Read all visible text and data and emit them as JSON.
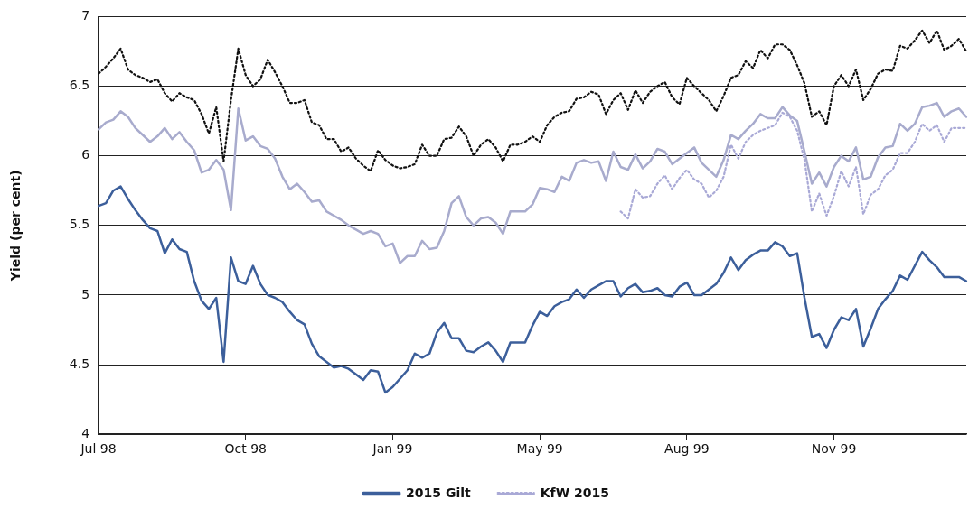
{
  "chart_data": {
    "type": "line",
    "ylabel": "Yield (per cent)",
    "categories": [
      "Jul 98",
      null,
      null,
      null,
      null,
      null,
      null,
      null,
      null,
      null,
      null,
      null,
      null,
      null,
      null,
      null,
      null,
      null,
      null,
      null,
      "Oct 98",
      null,
      null,
      null,
      null,
      null,
      null,
      null,
      null,
      null,
      null,
      null,
      null,
      null,
      null,
      null,
      null,
      null,
      null,
      null,
      "Jan 99",
      null,
      null,
      null,
      null,
      null,
      null,
      null,
      null,
      null,
      null,
      null,
      null,
      null,
      null,
      null,
      null,
      null,
      null,
      null,
      "May 99",
      null,
      null,
      null,
      null,
      null,
      null,
      null,
      null,
      null,
      null,
      null,
      null,
      null,
      null,
      null,
      null,
      null,
      null,
      null,
      "Aug 99",
      null,
      null,
      null,
      null,
      null,
      null,
      null,
      null,
      null,
      null,
      null,
      null,
      null,
      null,
      null,
      null,
      null,
      null,
      null,
      "Nov 99",
      null,
      null,
      null,
      null,
      null,
      null,
      null,
      null,
      null,
      null,
      null,
      null,
      null,
      null,
      null,
      null,
      null,
      null
    ],
    "ylim": [
      4,
      7
    ],
    "yticks": [
      4,
      4.5,
      5,
      5.5,
      6,
      6.5,
      7
    ],
    "grid": "y",
    "legend": "bottom",
    "series": [
      {
        "name": "2015 Gilt",
        "color": "#3c5f9b",
        "line_style": "solid",
        "values": [
          5.64,
          5.66,
          5.75,
          5.78,
          5.69,
          5.61,
          5.54,
          5.48,
          5.46,
          5.3,
          5.4,
          5.33,
          5.31,
          5.1,
          4.96,
          4.9,
          4.98,
          4.52,
          5.27,
          5.1,
          5.08,
          5.21,
          5.08,
          5.0,
          4.98,
          4.95,
          4.88,
          4.82,
          4.79,
          4.65,
          4.56,
          4.52,
          4.48,
          4.49,
          4.47,
          4.43,
          4.39,
          4.46,
          4.45,
          4.3,
          4.34,
          4.4,
          4.46,
          4.58,
          4.55,
          4.58,
          4.73,
          4.8,
          4.69,
          4.69,
          4.6,
          4.59,
          4.63,
          4.66,
          4.6,
          4.52,
          4.66,
          4.66,
          4.66,
          4.78,
          4.88,
          4.85,
          4.92,
          4.95,
          4.97,
          5.04,
          4.98,
          5.04,
          5.07,
          5.1,
          5.1,
          4.99,
          5.05,
          5.08,
          5.02,
          5.03,
          5.05,
          5.0,
          4.99,
          5.06,
          5.09,
          5.0,
          5.0,
          5.04,
          5.08,
          5.16,
          5.27,
          5.18,
          5.25,
          5.29,
          5.32,
          5.32,
          5.38,
          5.35,
          5.28,
          5.3,
          4.98,
          4.7,
          4.72,
          4.62,
          4.75,
          4.84,
          4.82,
          4.9,
          4.63,
          4.76,
          4.9,
          4.97,
          5.03,
          5.14,
          5.11,
          5.21,
          5.31,
          5.25,
          5.2,
          5.13,
          5.13,
          5.13,
          5.1
        ]
      },
      {
        "name": "KfW 2015",
        "color": "#a9a9d6",
        "line_style": "dotted",
        "values": [
          null,
          null,
          null,
          null,
          null,
          null,
          null,
          null,
          null,
          null,
          null,
          null,
          null,
          null,
          null,
          null,
          null,
          null,
          null,
          null,
          null,
          null,
          null,
          null,
          null,
          null,
          null,
          null,
          null,
          null,
          null,
          null,
          null,
          null,
          null,
          null,
          null,
          null,
          null,
          null,
          null,
          null,
          null,
          null,
          null,
          null,
          null,
          null,
          null,
          null,
          null,
          null,
          null,
          null,
          null,
          null,
          null,
          null,
          null,
          null,
          null,
          null,
          null,
          null,
          null,
          null,
          null,
          null,
          null,
          null,
          null,
          5.6,
          5.55,
          5.76,
          5.7,
          5.71,
          5.8,
          5.86,
          5.76,
          5.84,
          5.9,
          5.83,
          5.8,
          5.7,
          5.75,
          5.85,
          6.08,
          5.98,
          6.1,
          6.15,
          6.18,
          6.2,
          6.22,
          6.31,
          6.28,
          6.18,
          5.97,
          5.6,
          5.73,
          5.57,
          5.71,
          5.89,
          5.78,
          5.92,
          5.58,
          5.72,
          5.76,
          5.86,
          5.9,
          6.02,
          6.02,
          6.1,
          6.23,
          6.18,
          6.22,
          6.1,
          6.2,
          6.2,
          6.2
        ]
      },
      {
        "color": "#111111",
        "line_style": "dotted",
        "values": [
          6.59,
          6.64,
          6.7,
          6.77,
          6.62,
          6.58,
          6.56,
          6.53,
          6.55,
          6.45,
          6.39,
          6.45,
          6.42,
          6.4,
          6.3,
          6.16,
          6.35,
          5.96,
          6.4,
          6.77,
          6.58,
          6.5,
          6.55,
          6.69,
          6.6,
          6.5,
          6.38,
          6.38,
          6.4,
          6.24,
          6.22,
          6.12,
          6.12,
          6.03,
          6.06,
          5.98,
          5.93,
          5.89,
          6.04,
          5.97,
          5.93,
          5.91,
          5.92,
          5.94,
          6.08,
          6.0,
          6.0,
          6.12,
          6.13,
          6.21,
          6.14,
          6.0,
          6.08,
          6.12,
          6.06,
          5.96,
          6.08,
          6.08,
          6.1,
          6.14,
          6.1,
          6.22,
          6.28,
          6.31,
          6.32,
          6.41,
          6.42,
          6.46,
          6.44,
          6.3,
          6.4,
          6.45,
          6.33,
          6.47,
          6.38,
          6.46,
          6.5,
          6.53,
          6.42,
          6.37,
          6.56,
          6.5,
          6.45,
          6.4,
          6.32,
          6.43,
          6.56,
          6.58,
          6.68,
          6.63,
          6.76,
          6.7,
          6.8,
          6.8,
          6.76,
          6.65,
          6.52,
          6.28,
          6.32,
          6.22,
          6.5,
          6.58,
          6.5,
          6.62,
          6.4,
          6.48,
          6.59,
          6.62,
          6.61,
          6.79,
          6.77,
          6.83,
          6.9,
          6.81,
          6.9,
          6.76,
          6.79,
          6.84,
          6.75
        ]
      },
      {
        "color": "#a8abcd",
        "line_style": "solid",
        "values": [
          6.19,
          6.24,
          6.26,
          6.32,
          6.28,
          6.2,
          6.15,
          6.1,
          6.14,
          6.2,
          6.12,
          6.17,
          6.1,
          6.04,
          5.88,
          5.9,
          5.97,
          5.9,
          5.61,
          6.34,
          6.11,
          6.14,
          6.07,
          6.05,
          5.98,
          5.85,
          5.76,
          5.8,
          5.74,
          5.67,
          5.68,
          5.6,
          5.57,
          5.54,
          5.5,
          5.47,
          5.44,
          5.46,
          5.44,
          5.35,
          5.37,
          5.23,
          5.28,
          5.28,
          5.39,
          5.33,
          5.34,
          5.46,
          5.66,
          5.71,
          5.56,
          5.5,
          5.55,
          5.56,
          5.52,
          5.44,
          5.6,
          5.6,
          5.6,
          5.65,
          5.77,
          5.76,
          5.74,
          5.85,
          5.82,
          5.95,
          5.97,
          5.95,
          5.96,
          5.82,
          6.03,
          5.92,
          5.9,
          6.01,
          5.91,
          5.96,
          6.05,
          6.03,
          5.94,
          5.98,
          6.02,
          6.06,
          5.95,
          5.9,
          5.85,
          5.97,
          6.15,
          6.12,
          6.18,
          6.23,
          6.3,
          6.27,
          6.27,
          6.35,
          6.29,
          6.25,
          6.03,
          5.8,
          5.88,
          5.78,
          5.92,
          6.0,
          5.96,
          6.06,
          5.83,
          5.85,
          5.99,
          6.06,
          6.07,
          6.23,
          6.18,
          6.23,
          6.35,
          6.36,
          6.38,
          6.28,
          6.32,
          6.34,
          6.28
        ]
      }
    ]
  }
}
